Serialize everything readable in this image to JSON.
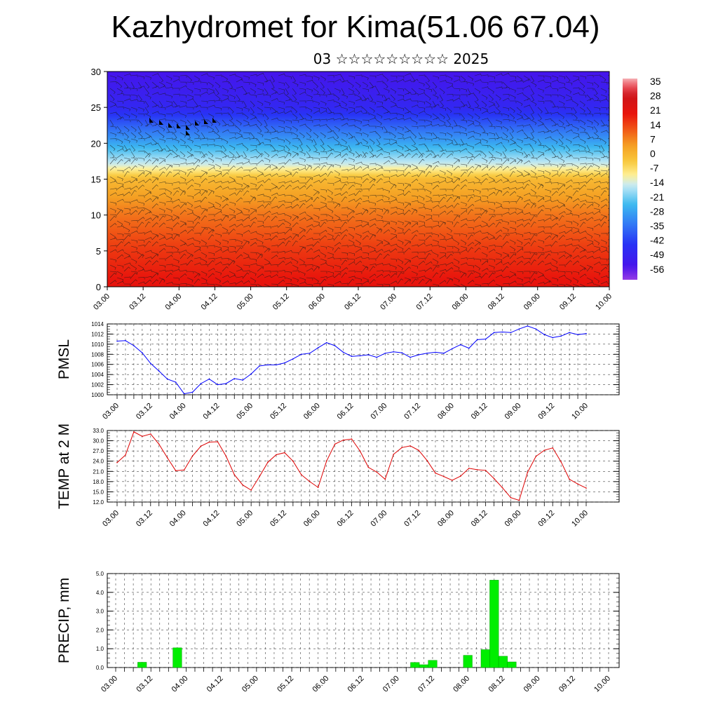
{
  "header": {
    "title": "Kazhydromet for Kima(51.06 67.04)",
    "subtitle": "03 ☆☆☆☆☆☆☆☆☆ 2025"
  },
  "time_labels": [
    "03.00",
    "03.12",
    "04.00",
    "04.12",
    "05.00",
    "05.12",
    "06.00",
    "06.12",
    "07.00",
    "07.12",
    "08.00",
    "08.12",
    "09.00",
    "09.12",
    "10.00"
  ],
  "chart_data": [
    {
      "type": "heatmap",
      "title": "",
      "xlabel": "",
      "ylabel": "",
      "x": [
        "03.00",
        "03.12",
        "04.00",
        "04.12",
        "05.00",
        "05.12",
        "06.00",
        "06.12",
        "07.00",
        "07.12",
        "08.00",
        "08.12",
        "09.00",
        "09.12",
        "10.00"
      ],
      "ylim": [
        0,
        30
      ],
      "yticks": [
        0,
        5,
        10,
        15,
        20,
        25,
        30
      ],
      "colorbar": {
        "labels": [
          "35",
          "28",
          "21",
          "14",
          "7",
          "0",
          "-7",
          "-14",
          "-21",
          "-28",
          "-35",
          "-42",
          "-49",
          "-56"
        ],
        "range": [
          -63,
          39
        ]
      },
      "temperature_profile": {
        "levels_km": [
          0,
          5,
          10,
          15,
          17,
          20,
          25,
          30
        ],
        "values": [
          22,
          17,
          10,
          0,
          -14,
          -28,
          -49,
          -56
        ]
      },
      "wind_barbs": "dense overlay of wind barbs",
      "colors": {
        "hot": "#e8140a",
        "warm": "#f7a520",
        "cool": "#3cb4ea",
        "cold": "#2a20e6"
      }
    },
    {
      "type": "line",
      "ylabel": "PMSL",
      "ylim": [
        1000,
        1014
      ],
      "yticks": [
        "1000",
        "1002",
        "1004",
        "1006",
        "1008",
        "1010",
        "1012",
        "1014"
      ],
      "x_hours_step": 3,
      "series": [
        {
          "color": "#0000ff",
          "values": [
            1010.6,
            1010.7,
            1009.7,
            1008.3,
            1006.2,
            1004.7,
            1003.1,
            1002.5,
            1000.2,
            1000.5,
            1002.2,
            1003.1,
            1002.0,
            1002.2,
            1003.2,
            1002.9,
            1004.1,
            1005.7,
            1005.9,
            1005.9,
            1006.3,
            1007.1,
            1008.0,
            1008.2,
            1009.3,
            1010.3,
            1009.7,
            1008.4,
            1007.6,
            1007.7,
            1007.9,
            1007.4,
            1008.2,
            1008.5,
            1008.3,
            1007.4,
            1007.9,
            1008.2,
            1008.4,
            1008.2,
            1009.1,
            1009.9,
            1009.2,
            1010.9,
            1011.0,
            1012.3,
            1012.4,
            1012.3,
            1013.0,
            1013.6,
            1013.0,
            1011.9,
            1011.3,
            1011.6,
            1012.3,
            1011.9,
            1012.1
          ]
        }
      ]
    },
    {
      "type": "line",
      "ylabel": "TEMP at 2 M",
      "ylim": [
        12,
        33
      ],
      "yticks": [
        "12.0",
        "15.0",
        "18.0",
        "21.0",
        "24.0",
        "27.0",
        "30.0",
        "33.0"
      ],
      "x_hours_step": 3,
      "series": [
        {
          "color": "#dd0000",
          "values": [
            23.6,
            25.8,
            32.6,
            31.3,
            32.0,
            29.0,
            25.0,
            21.2,
            21.4,
            25.5,
            28.4,
            29.6,
            29.7,
            25.5,
            20.0,
            17.0,
            15.5,
            19.5,
            23.7,
            25.9,
            26.5,
            24.0,
            20.0,
            18.0,
            16.3,
            24.0,
            29.0,
            30.2,
            30.5,
            27.0,
            22.2,
            20.8,
            18.7,
            26.0,
            28.0,
            28.5,
            27.2,
            24.2,
            20.5,
            19.5,
            18.4,
            19.6,
            21.9,
            21.5,
            21.3,
            18.9,
            16.2,
            13.3,
            12.5,
            20.7,
            25.4,
            27.2,
            27.9,
            23.8,
            18.7,
            17.3,
            16.1
          ]
        }
      ]
    },
    {
      "type": "bar",
      "ylabel": "PRECIP, mm",
      "ylim": [
        0,
        5
      ],
      "yticks": [
        "0.0",
        "1.0",
        "2.0",
        "3.0",
        "4.0",
        "5.0"
      ],
      "x_hours_step": 3,
      "series": [
        {
          "color": "#00ee00",
          "values": [
            0,
            0,
            0,
            0.28,
            0,
            0,
            0,
            1.05,
            0,
            0,
            0,
            0,
            0,
            0,
            0,
            0,
            0,
            0,
            0,
            0,
            0,
            0,
            0,
            0,
            0,
            0,
            0,
            0,
            0,
            0,
            0,
            0,
            0,
            0,
            0.27,
            0.15,
            0.38,
            0,
            0,
            0,
            0.65,
            0,
            0.95,
            4.65,
            0.6,
            0.3,
            0,
            0,
            0,
            0,
            0,
            0,
            0,
            0,
            0,
            0
          ]
        }
      ]
    }
  ]
}
